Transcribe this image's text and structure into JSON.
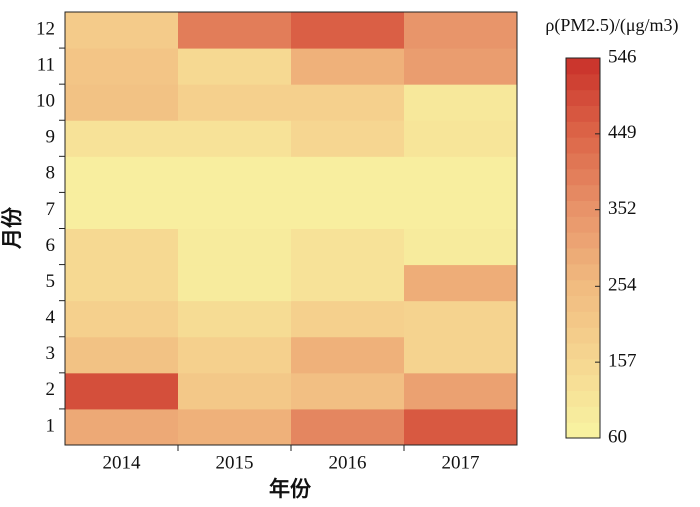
{
  "chart_data": {
    "type": "heatmap",
    "x_label": "年份",
    "y_label": "月份",
    "x_categories": [
      "2014",
      "2015",
      "2016",
      "2017"
    ],
    "y_categories": [
      "1",
      "2",
      "3",
      "4",
      "5",
      "6",
      "7",
      "8",
      "9",
      "10",
      "11",
      "12"
    ],
    "values": [
      [
        300,
        280,
        380,
        470
      ],
      [
        490,
        210,
        240,
        320
      ],
      [
        230,
        180,
        280,
        170
      ],
      [
        180,
        140,
        180,
        170
      ],
      [
        150,
        90,
        120,
        290
      ],
      [
        150,
        90,
        120,
        90
      ],
      [
        80,
        80,
        80,
        80
      ],
      [
        80,
        80,
        80,
        80
      ],
      [
        120,
        120,
        160,
        110
      ],
      [
        230,
        180,
        180,
        100
      ],
      [
        220,
        150,
        280,
        330
      ],
      [
        200,
        400,
        460,
        350
      ]
    ],
    "colormap": [
      "#f8f4a2",
      "#f6d791",
      "#f1bb80",
      "#e8946a",
      "#dc6548",
      "#c9302a"
    ],
    "colorbar": {
      "label": "ρ(PM2.5)/(μg/m3)",
      "lim": [
        60,
        546
      ],
      "ticks": [
        60,
        157,
        254,
        352,
        449,
        546
      ]
    }
  }
}
